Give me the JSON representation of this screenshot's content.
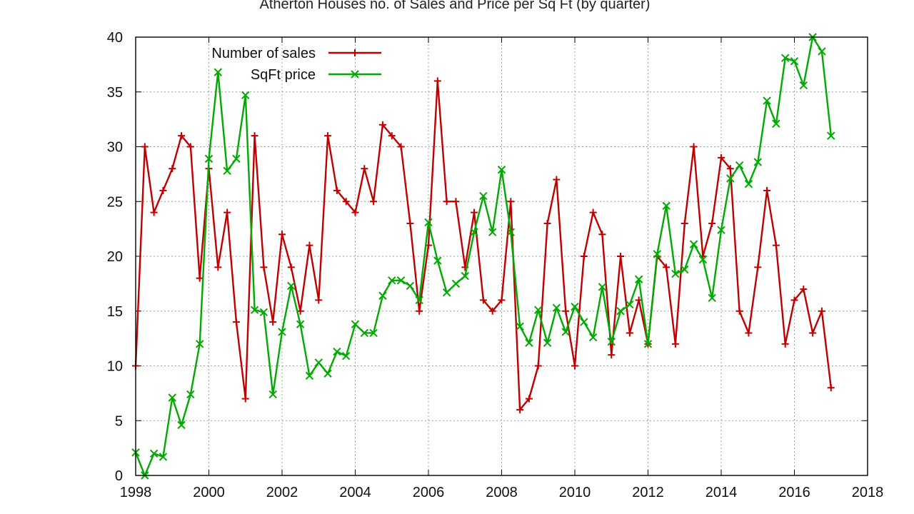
{
  "chart_data": {
    "type": "line",
    "title": "Atherton Houses no. of Sales and Price per Sq Ft (by quarter)",
    "xlabel": "",
    "ylabel": "",
    "xlim": [
      1998,
      2018
    ],
    "ylim": [
      0,
      40
    ],
    "x_ticks": [
      1998,
      2000,
      2002,
      2004,
      2006,
      2008,
      2010,
      2012,
      2014,
      2016,
      2018
    ],
    "y_ticks": [
      0,
      5,
      10,
      15,
      20,
      25,
      30,
      35,
      40
    ],
    "grid": true,
    "legend_position": "top-left",
    "series": [
      {
        "name": "Number of sales",
        "color": "#c00000",
        "marker": "plus",
        "x": [
          1998.0,
          1998.25,
          1998.5,
          1998.75,
          1999.0,
          1999.25,
          1999.5,
          1999.75,
          2000.0,
          2000.25,
          2000.5,
          2000.75,
          2001.0,
          2001.25,
          2001.5,
          2001.75,
          2002.0,
          2002.25,
          2002.5,
          2002.75,
          2003.0,
          2003.25,
          2003.5,
          2003.75,
          2004.0,
          2004.25,
          2004.5,
          2004.75,
          2005.0,
          2005.25,
          2005.5,
          2005.75,
          2006.0,
          2006.25,
          2006.5,
          2006.75,
          2007.0,
          2007.25,
          2007.5,
          2007.75,
          2008.0,
          2008.25,
          2008.5,
          2008.75,
          2009.0,
          2009.25,
          2009.5,
          2009.75,
          2010.0,
          2010.25,
          2010.5,
          2010.75,
          2011.0,
          2011.25,
          2011.5,
          2011.75,
          2012.0,
          2012.25,
          2012.5,
          2012.75,
          2013.0,
          2013.25,
          2013.5,
          2013.75,
          2014.0,
          2014.25,
          2014.5,
          2014.75,
          2015.0,
          2015.25,
          2015.5,
          2015.75,
          2016.0,
          2016.25,
          2016.5,
          2016.75,
          2017.0
        ],
        "values": [
          10,
          30,
          24,
          26,
          28,
          31,
          30,
          18,
          28,
          19,
          24,
          14,
          7,
          31,
          19,
          14,
          22,
          19,
          15,
          21,
          16,
          31,
          26,
          25,
          24,
          28,
          25,
          32,
          31,
          30,
          23,
          15,
          21,
          36,
          25,
          25,
          19,
          24,
          16,
          15,
          16,
          25,
          6,
          7,
          10,
          23,
          27,
          15,
          10,
          20,
          24,
          22,
          11,
          20,
          13,
          16,
          12,
          20,
          19,
          12,
          23,
          30,
          20,
          23,
          29,
          28,
          15,
          13,
          19,
          26,
          21,
          12,
          16,
          17,
          13,
          15,
          8
        ]
      },
      {
        "name": "SqFt price",
        "color": "#00aa00",
        "marker": "x",
        "x": [
          1998.0,
          1998.25,
          1998.5,
          1998.75,
          1999.0,
          1999.25,
          1999.5,
          1999.75,
          2000.0,
          2000.25,
          2000.5,
          2000.75,
          2001.0,
          2001.25,
          2001.5,
          2001.75,
          2002.0,
          2002.25,
          2002.5,
          2002.75,
          2003.0,
          2003.25,
          2003.5,
          2003.75,
          2004.0,
          2004.25,
          2004.5,
          2004.75,
          2005.0,
          2005.25,
          2005.5,
          2005.75,
          2006.0,
          2006.25,
          2006.5,
          2006.75,
          2007.0,
          2007.25,
          2007.5,
          2007.75,
          2008.0,
          2008.25,
          2008.5,
          2008.75,
          2009.0,
          2009.25,
          2009.5,
          2009.75,
          2010.0,
          2010.25,
          2010.5,
          2010.75,
          2011.0,
          2011.25,
          2011.5,
          2011.75,
          2012.0,
          2012.25,
          2012.5,
          2012.75,
          2013.0,
          2013.25,
          2013.5,
          2013.75,
          2014.0,
          2014.25,
          2014.5,
          2014.75,
          2015.0,
          2015.25,
          2015.5,
          2015.75,
          2016.0,
          2016.25,
          2016.5,
          2016.75,
          2017.0
        ],
        "values": [
          2.1,
          0,
          2.0,
          1.7,
          7.1,
          4.6,
          7.4,
          12.0,
          28.9,
          36.8,
          27.8,
          28.9,
          34.7,
          15.1,
          14.9,
          7.4,
          13.1,
          17.3,
          13.8,
          9.1,
          10.3,
          9.3,
          11.3,
          10.9,
          13.8,
          13.0,
          13.0,
          16.4,
          17.8,
          17.8,
          17.3,
          16.0,
          23.1,
          19.6,
          16.7,
          17.5,
          18.2,
          22.2,
          25.5,
          22.2,
          27.9,
          22.2,
          13.6,
          12.1,
          15.1,
          12.1,
          15.3,
          13.1,
          15.4,
          14.0,
          12.6,
          17.2,
          12.2,
          15.0,
          15.6,
          17.9,
          12.0,
          20.2,
          24.6,
          18.4,
          18.8,
          21.1,
          19.7,
          16.2,
          22.4,
          27.1,
          28.3,
          26.6,
          28.6,
          34.2,
          32.1,
          38.1,
          37.8,
          35.6,
          40.0,
          38.7,
          31.0
        ]
      }
    ]
  }
}
